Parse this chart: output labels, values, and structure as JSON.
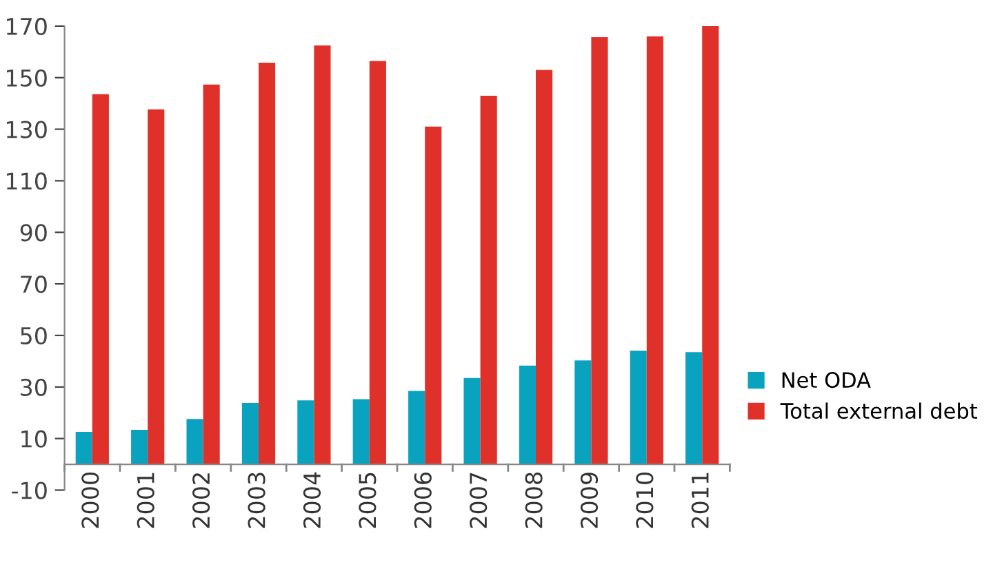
{
  "chart_data": {
    "type": "bar",
    "categories": [
      "2000",
      "2001",
      "2002",
      "2003",
      "2004",
      "2005",
      "2006",
      "2007",
      "2008",
      "2009",
      "2010",
      "2011"
    ],
    "series": [
      {
        "name": "Net ODA",
        "color": "#0aa3bf",
        "values": [
          12.6,
          13.4,
          17.6,
          23.8,
          24.8,
          25.3,
          28.5,
          33.5,
          38.3,
          40.3,
          44.1,
          43.5
        ]
      },
      {
        "name": "Total external debt",
        "color": "#e0302a",
        "values": [
          143.6,
          137.7,
          147.3,
          155.8,
          162.5,
          156.5,
          131,
          143,
          153,
          165.7,
          166,
          170
        ]
      }
    ],
    "ylim": [
      -10,
      170
    ],
    "yticks": [
      -10,
      10,
      30,
      50,
      70,
      90,
      110,
      130,
      150,
      170
    ],
    "grid": false,
    "legend": "right"
  }
}
